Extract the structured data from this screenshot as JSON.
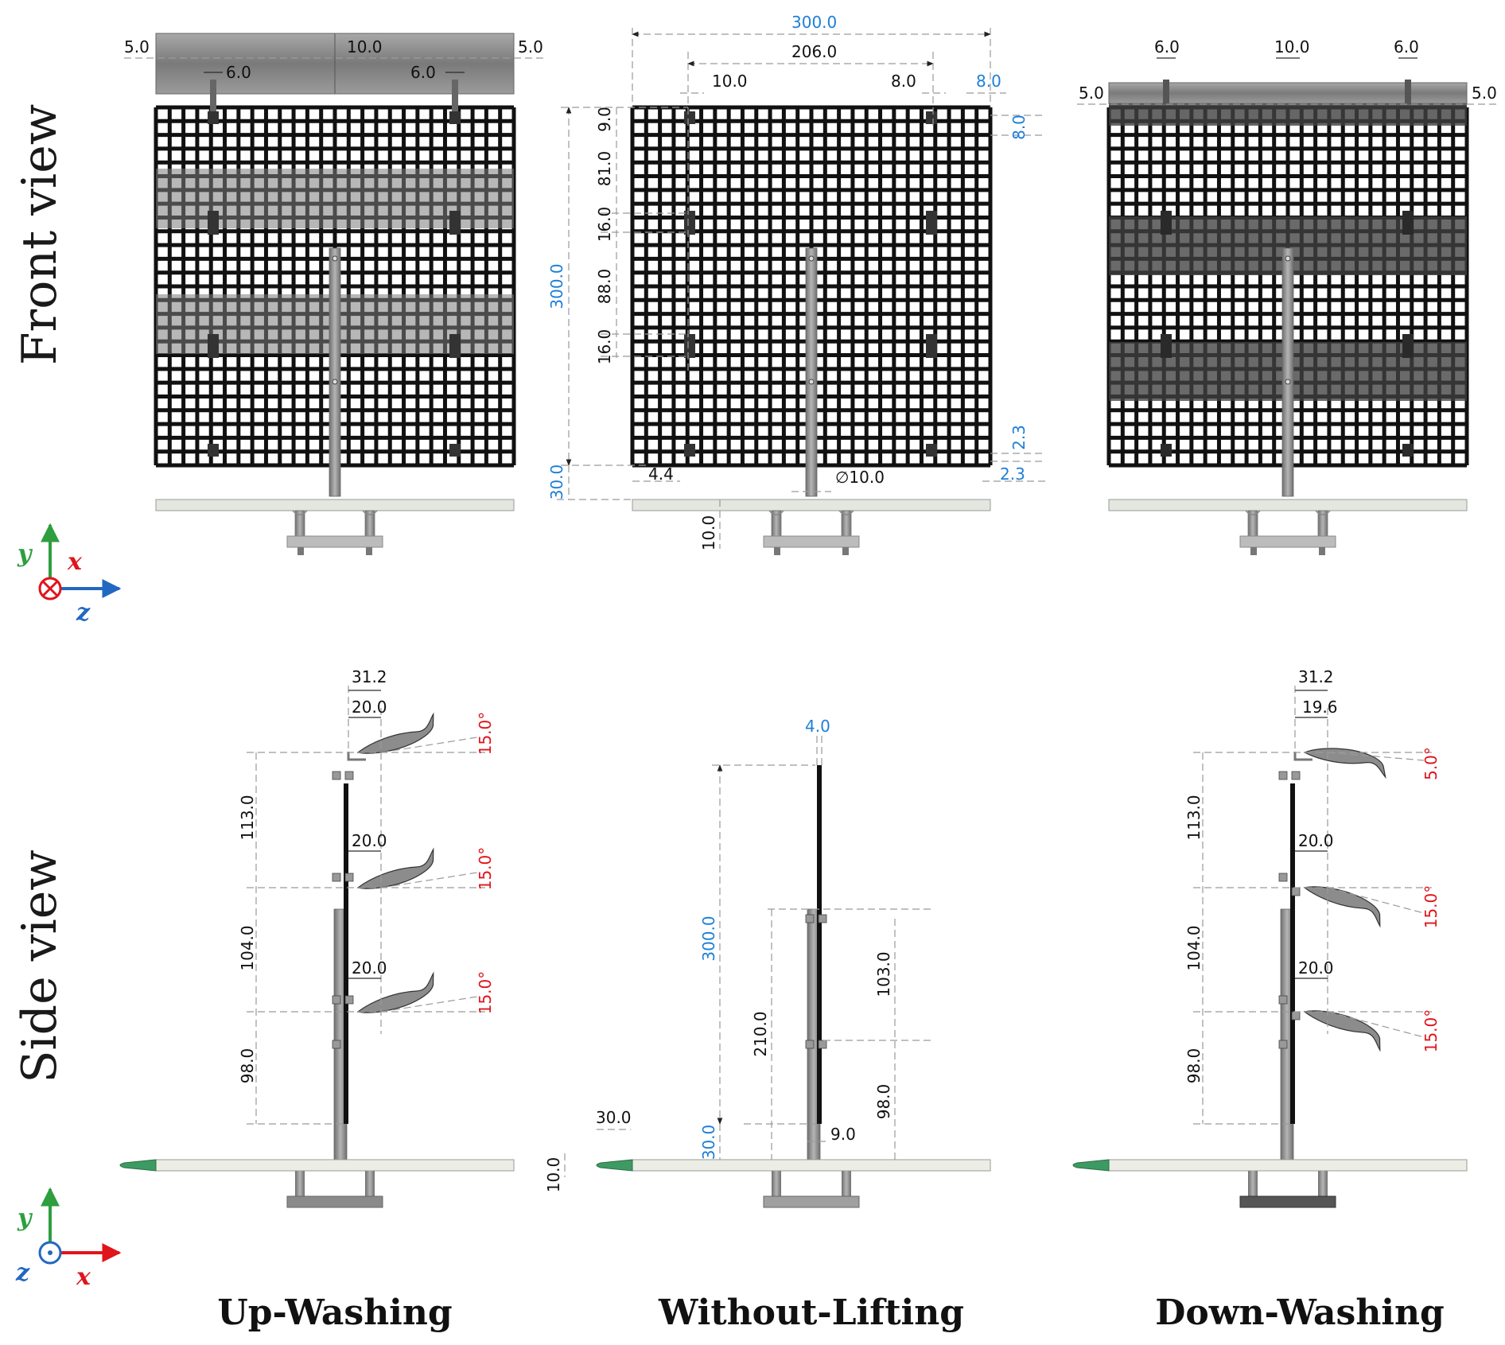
{
  "row_labels": {
    "front": "Front view",
    "side": "Side view"
  },
  "captions": [
    "Up-Washing",
    "Without-Lifting",
    "Down-Washing"
  ],
  "axes_front": {
    "y": "y",
    "x": "x",
    "z": "z"
  },
  "axes_side": {
    "y": "y",
    "z": "z",
    "x": "x"
  },
  "colors": {
    "dim_black": "#111111",
    "dim_blue": "#1e7fd8",
    "angle_red": "#e0141b",
    "nose_green": "#3d9a62",
    "axis_y": "#2e9e3f",
    "axis_x": "#e0141b",
    "axis_z": "#2268c2"
  },
  "front_up": {
    "d1": "5.0",
    "d2": "10.0",
    "d3": "5.0",
    "d4": "6.0",
    "d5": "6.0"
  },
  "front_mid": {
    "total_width": "300.0",
    "inner_width": "206.0",
    "w10": "10.0",
    "w8": "8.0",
    "w8_blue": "8.0",
    "h9": "9.0",
    "h81": "81.0",
    "h16a": "16.0",
    "h88": "88.0",
    "h16b": "16.0",
    "height_blue": "300.0",
    "v8_blue": "8.0",
    "h23a": "2.3",
    "h23b": "2.3",
    "h30_blue": "30.0",
    "w44": "4.4",
    "diameter": "∅10.0",
    "h10": "10.0"
  },
  "front_down": {
    "d1": "6.0",
    "d2": "10.0",
    "d3": "6.0",
    "d4": "5.0",
    "d5": "5.0"
  },
  "side_up": {
    "w312": "31.2",
    "w20a": "20.0",
    "w20b": "20.0",
    "w20c": "20.0",
    "a1": "15.0°",
    "a2": "15.0°",
    "a3": "15.0°",
    "h113": "113.0",
    "h104": "104.0",
    "h98": "98.0"
  },
  "side_mid": {
    "w4_blue": "4.0",
    "h300_blue": "300.0",
    "h210": "210.0",
    "h103": "103.0",
    "h98": "98.0",
    "h30_blue": "30.0",
    "w9": "9.0",
    "w30": "30.0",
    "h10": "10.0"
  },
  "side_down": {
    "w312": "31.2",
    "w196": "19.6",
    "w20a": "20.0",
    "w20b": "20.0",
    "a1": "5.0°",
    "a2": "15.0°",
    "a3": "15.0°",
    "h113": "113.0",
    "h104": "104.0",
    "h98": "98.0"
  }
}
